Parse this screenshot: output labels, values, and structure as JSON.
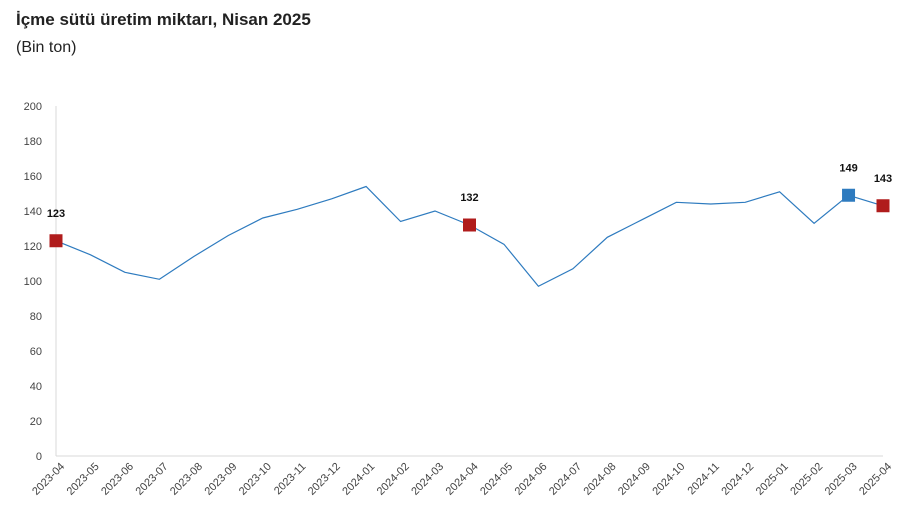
{
  "chart_data": {
    "type": "line",
    "title": "İçme sütü üretim miktarı, Nisan 2025",
    "subtitle": "(Bin ton)",
    "xlabel": "",
    "ylabel": "",
    "ylim": [
      0,
      200
    ],
    "yticks": [
      0,
      20,
      40,
      60,
      80,
      100,
      120,
      140,
      160,
      180,
      200
    ],
    "grid": false,
    "legend": "none",
    "categories": [
      "2023-04",
      "2023-05",
      "2023-06",
      "2023-07",
      "2023-08",
      "2023-09",
      "2023-10",
      "2023-11",
      "2023-12",
      "2024-01",
      "2024-02",
      "2024-03",
      "2024-04",
      "2024-05",
      "2024-06",
      "2024-07",
      "2024-08",
      "2024-09",
      "2024-10",
      "2024-11",
      "2024-12",
      "2025-01",
      "2025-02",
      "2025-03",
      "2025-04"
    ],
    "series": [
      {
        "values": [
          123,
          115,
          105,
          101,
          114,
          126,
          136,
          141,
          147,
          154,
          134,
          140,
          132,
          121,
          97,
          107,
          125,
          135,
          145,
          144,
          145,
          151,
          133,
          149,
          143
        ]
      }
    ],
    "line_color": "#2e7bbf",
    "markers": [
      {
        "category": "2023-04",
        "value": 123,
        "label": "123",
        "color": "#b01c1c"
      },
      {
        "category": "2024-04",
        "value": 132,
        "label": "132",
        "color": "#b01c1c"
      },
      {
        "category": "2025-03",
        "value": 149,
        "label": "149",
        "color": "#2e7bbf"
      },
      {
        "category": "2025-04",
        "value": 143,
        "label": "143",
        "color": "#b01c1c"
      }
    ]
  }
}
